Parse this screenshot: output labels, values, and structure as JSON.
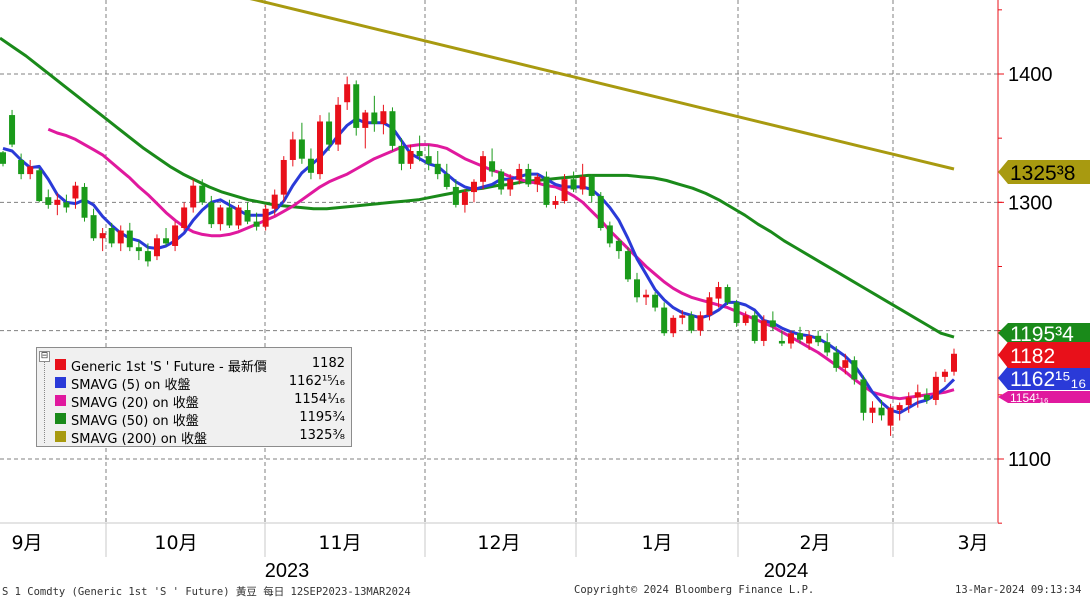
{
  "chart_data": {
    "type": "candlestick",
    "y_axis": {
      "ticks": [
        1100,
        1200,
        1300,
        1400
      ],
      "tick_labels": [
        "1100",
        "",
        "1300",
        "1400"
      ],
      "range": [
        1040,
        1500
      ],
      "position": "right"
    },
    "x_axis": {
      "month_labels": [
        "9月",
        "10月",
        "11月",
        "12月",
        "1月",
        "2月",
        "3月"
      ],
      "year_labels": [
        "2023",
        "2024"
      ]
    },
    "grid": true,
    "price": {
      "name": "Generic 1st 'S ' Future",
      "color": "#e8101a",
      "up_color": "#e8101a",
      "down_color": "#1a9a1a",
      "candles": [
        [
          1339,
          1340,
          1328,
          1330
        ],
        [
          1368,
          1372,
          1343,
          1345
        ],
        [
          1333,
          1338,
          1318,
          1322
        ],
        [
          1322,
          1333,
          1318,
          1328
        ],
        [
          1325,
          1327,
          1300,
          1301
        ],
        [
          1304,
          1310,
          1295,
          1298
        ],
        [
          1298,
          1307,
          1290,
          1302
        ],
        [
          1300,
          1306,
          1292,
          1296
        ],
        [
          1303,
          1316,
          1295,
          1313
        ],
        [
          1312,
          1315,
          1285,
          1288
        ],
        [
          1290,
          1295,
          1270,
          1272
        ],
        [
          1272,
          1280,
          1262,
          1276
        ],
        [
          1280,
          1284,
          1265,
          1268
        ],
        [
          1268,
          1282,
          1262,
          1278
        ],
        [
          1278,
          1284,
          1262,
          1265
        ],
        [
          1265,
          1270,
          1255,
          1262
        ],
        [
          1262,
          1268,
          1250,
          1254
        ],
        [
          1258,
          1275,
          1255,
          1272
        ],
        [
          1272,
          1280,
          1266,
          1268
        ],
        [
          1266,
          1285,
          1262,
          1282
        ],
        [
          1280,
          1300,
          1278,
          1296
        ],
        [
          1296,
          1318,
          1292,
          1313
        ],
        [
          1313,
          1318,
          1298,
          1300
        ],
        [
          1300,
          1305,
          1280,
          1283
        ],
        [
          1283,
          1298,
          1278,
          1296
        ],
        [
          1296,
          1302,
          1280,
          1282
        ],
        [
          1282,
          1298,
          1279,
          1296
        ],
        [
          1294,
          1300,
          1283,
          1285
        ],
        [
          1285,
          1292,
          1278,
          1281
        ],
        [
          1281,
          1298,
          1278,
          1295
        ],
        [
          1295,
          1310,
          1290,
          1306
        ],
        [
          1306,
          1336,
          1300,
          1333
        ],
        [
          1333,
          1355,
          1328,
          1349
        ],
        [
          1349,
          1362,
          1330,
          1334
        ],
        [
          1334,
          1342,
          1318,
          1323
        ],
        [
          1322,
          1368,
          1318,
          1363
        ],
        [
          1363,
          1370,
          1340,
          1345
        ],
        [
          1345,
          1382,
          1340,
          1376
        ],
        [
          1378,
          1398,
          1372,
          1392
        ],
        [
          1392,
          1395,
          1352,
          1358
        ],
        [
          1358,
          1372,
          1342,
          1370
        ],
        [
          1370,
          1383,
          1355,
          1361
        ],
        [
          1361,
          1376,
          1353,
          1371
        ],
        [
          1371,
          1374,
          1340,
          1344
        ],
        [
          1344,
          1350,
          1325,
          1330
        ],
        [
          1330,
          1345,
          1326,
          1340
        ],
        [
          1340,
          1352,
          1332,
          1336
        ],
        [
          1336,
          1345,
          1325,
          1330
        ],
        [
          1330,
          1340,
          1318,
          1322
        ],
        [
          1322,
          1330,
          1310,
          1312
        ],
        [
          1312,
          1318,
          1296,
          1298
        ],
        [
          1298,
          1310,
          1292,
          1308
        ],
        [
          1308,
          1318,
          1300,
          1316
        ],
        [
          1316,
          1340,
          1310,
          1336
        ],
        [
          1332,
          1342,
          1320,
          1324
        ],
        [
          1324,
          1326,
          1306,
          1310
        ],
        [
          1310,
          1322,
          1305,
          1318
        ],
        [
          1318,
          1330,
          1314,
          1326
        ],
        [
          1326,
          1330,
          1312,
          1314
        ],
        [
          1314,
          1322,
          1308,
          1320
        ],
        [
          1320,
          1324,
          1296,
          1298
        ],
        [
          1298,
          1305,
          1295,
          1301
        ],
        [
          1301,
          1322,
          1299,
          1318
        ],
        [
          1318,
          1324,
          1308,
          1310
        ],
        [
          1310,
          1330,
          1306,
          1320
        ],
        [
          1320,
          1322,
          1300,
          1305
        ],
        [
          1305,
          1308,
          1278,
          1280
        ],
        [
          1282,
          1285,
          1265,
          1268
        ],
        [
          1270,
          1272,
          1256,
          1262
        ],
        [
          1262,
          1265,
          1238,
          1240
        ],
        [
          1240,
          1245,
          1222,
          1226
        ],
        [
          1226,
          1232,
          1220,
          1228
        ],
        [
          1228,
          1230,
          1215,
          1218
        ],
        [
          1218,
          1222,
          1196,
          1198
        ],
        [
          1198,
          1212,
          1195,
          1210
        ],
        [
          1210,
          1216,
          1205,
          1212
        ],
        [
          1212,
          1215,
          1198,
          1200
        ],
        [
          1200,
          1215,
          1196,
          1212
        ],
        [
          1212,
          1230,
          1208,
          1226
        ],
        [
          1225,
          1238,
          1218,
          1234
        ],
        [
          1234,
          1236,
          1220,
          1222
        ],
        [
          1222,
          1224,
          1203,
          1206
        ],
        [
          1206,
          1215,
          1204,
          1212
        ],
        [
          1212,
          1215,
          1190,
          1192
        ],
        [
          1192,
          1212,
          1188,
          1208
        ],
        [
          1208,
          1215,
          1200,
          1203
        ],
        [
          1192,
          1200,
          1188,
          1190
        ],
        [
          1190,
          1200,
          1186,
          1198
        ],
        [
          1198,
          1203,
          1190,
          1193
        ],
        [
          1190,
          1200,
          1185,
          1196
        ],
        [
          1196,
          1200,
          1188,
          1191
        ],
        [
          1191,
          1198,
          1180,
          1183
        ],
        [
          1183,
          1188,
          1168,
          1171
        ],
        [
          1171,
          1182,
          1166,
          1177
        ],
        [
          1177,
          1180,
          1158,
          1162
        ],
        [
          1162,
          1165,
          1130,
          1136
        ],
        [
          1136,
          1145,
          1128,
          1140
        ],
        [
          1140,
          1146,
          1130,
          1134
        ],
        [
          1126,
          1143,
          1118,
          1140
        ],
        [
          1138,
          1144,
          1130,
          1142
        ],
        [
          1142,
          1152,
          1136,
          1148
        ],
        [
          1148,
          1158,
          1140,
          1152
        ],
        [
          1150,
          1155,
          1143,
          1146
        ],
        [
          1146,
          1168,
          1142,
          1164
        ],
        [
          1164,
          1170,
          1160,
          1168
        ],
        [
          1168,
          1186,
          1165,
          1182
        ]
      ]
    },
    "series": [
      {
        "name": "SMAVG (5)  on 收盤",
        "color": "#2a3ad8",
        "values": [
          1342,
          1340,
          1333,
          1327,
          1328,
          1318,
          1306,
          1300,
          1299,
          1302,
          1298,
          1289,
          1282,
          1276,
          1272,
          1270,
          1265,
          1264,
          1266,
          1270,
          1276,
          1286,
          1294,
          1300,
          1302,
          1298,
          1294,
          1290,
          1290,
          1290,
          1293,
          1301,
          1313,
          1323,
          1329,
          1335,
          1343,
          1352,
          1360,
          1365,
          1362,
          1362,
          1362,
          1358,
          1348,
          1338,
          1334,
          1330,
          1328,
          1322,
          1316,
          1312,
          1310,
          1312,
          1314,
          1318,
          1318,
          1320,
          1322,
          1322,
          1318,
          1314,
          1312,
          1312,
          1312,
          1310,
          1304,
          1296,
          1286,
          1272,
          1256,
          1244,
          1232,
          1224,
          1218,
          1214,
          1212,
          1210,
          1212,
          1216,
          1222,
          1222,
          1220,
          1216,
          1208,
          1206,
          1202,
          1199,
          1197,
          1196,
          1194,
          1190,
          1185,
          1180,
          1173,
          1163,
          1152,
          1144,
          1138,
          1136,
          1140,
          1144,
          1146,
          1150,
          1155,
          1162
        ]
      },
      {
        "name": "SMAVG (20)  on 收盤",
        "color": "#e0199e",
        "values": [
          1357,
          1354,
          1352,
          1349,
          1345,
          1341,
          1337,
          1331,
          1325,
          1319,
          1312,
          1306,
          1299,
          1292,
          1286,
          1281,
          1277,
          1275,
          1274,
          1274,
          1275,
          1277,
          1280,
          1283,
          1286,
          1289,
          1293,
          1297,
          1302,
          1307,
          1312,
          1316,
          1319,
          1322,
          1326,
          1330,
          1334,
          1337,
          1340,
          1343,
          1344,
          1345,
          1345,
          1344,
          1342,
          1338,
          1334,
          1331,
          1328,
          1325,
          1323,
          1320,
          1318,
          1316,
          1315,
          1313,
          1312,
          1309,
          1305,
          1300,
          1293,
          1286,
          1278,
          1271,
          1264,
          1257,
          1250,
          1244,
          1238,
          1233,
          1229,
          1226,
          1224,
          1222,
          1220,
          1218,
          1215,
          1212,
          1209,
          1206,
          1203,
          1199,
          1195,
          1191,
          1187,
          1183,
          1178,
          1173,
          1168,
          1162,
          1157,
          1152,
          1150,
          1148,
          1147,
          1148,
          1149,
          1150,
          1151,
          1152,
          1154
        ]
      },
      {
        "name": "SMAVG (50)  on 收盤",
        "color": "#1a8a1a",
        "values": [
          1428,
          1421,
          1414,
          1406,
          1398,
          1390,
          1382,
          1374,
          1366,
          1358,
          1350,
          1342,
          1335,
          1328,
          1322,
          1317,
          1312,
          1308,
          1305,
          1302,
          1300,
          1298,
          1297,
          1296,
          1295,
          1295,
          1296,
          1297,
          1298,
          1299,
          1300,
          1301,
          1302,
          1304,
          1306,
          1308,
          1310,
          1311,
          1313,
          1314,
          1316,
          1317,
          1318,
          1319,
          1320,
          1321,
          1321,
          1321,
          1321,
          1320,
          1319,
          1317,
          1314,
          1311,
          1307,
          1302,
          1296,
          1290,
          1283,
          1277,
          1270,
          1264,
          1258,
          1252,
          1246,
          1240,
          1234,
          1228,
          1222,
          1216,
          1210,
          1204,
          1198,
          1195
        ]
      },
      {
        "name": "SMAVG (200)  on 收盤",
        "color": "#a89a10",
        "values": [
          1503,
          1498,
          1493,
          1488,
          1482,
          1476,
          1470,
          1464,
          1458,
          1452,
          1446,
          1440,
          1434,
          1428,
          1422,
          1416,
          1410,
          1404,
          1398,
          1392,
          1386,
          1380,
          1374,
          1368,
          1362,
          1356,
          1350,
          1344,
          1338,
          1332,
          1326
        ]
      }
    ],
    "last_value_tags": [
      {
        "label": "1325³8",
        "color": "#a89a10",
        "text_color": "#000000"
      },
      {
        "label": "1195³4",
        "color": "#1a8a1a",
        "text_color": "#ffffff"
      },
      {
        "label": "1182",
        "color": "#e8101a",
        "text_color": "#ffffff"
      },
      {
        "label": "1162¹⁵₁₆",
        "color": "#2a3ad8",
        "text_color": "#ffffff"
      },
      {
        "label": "1154¹₁₆",
        "color": "#e0199e",
        "text_color": "#ffffff"
      }
    ]
  },
  "legend": {
    "toggle": "⊟",
    "items": [
      {
        "label": "Generic 1st 'S ' Future - 最新價",
        "value": "1182",
        "color": "#e8101a"
      },
      {
        "label": "SMAVG (5)  on 收盤",
        "value": "1162¹⁵⁄₁₆",
        "color": "#2a3ad8"
      },
      {
        "label": "SMAVG (20)  on 收盤",
        "value": "1154¹⁄₁₆",
        "color": "#e0199e"
      },
      {
        "label": "SMAVG (50)  on 收盤",
        "value": "1195³⁄₄",
        "color": "#1a8a1a"
      },
      {
        "label": "SMAVG (200)  on 收盤",
        "value": "1325³⁄₈",
        "color": "#a89a10"
      }
    ]
  },
  "footer": {
    "left": "S 1 Comdty (Generic 1st 'S ' Future) 黃豆  每日 12SEP2023-13MAR2024",
    "center": "Copyright© 2024 Bloomberg Finance L.P.",
    "right": "13-Mar-2024 09:13:34"
  }
}
